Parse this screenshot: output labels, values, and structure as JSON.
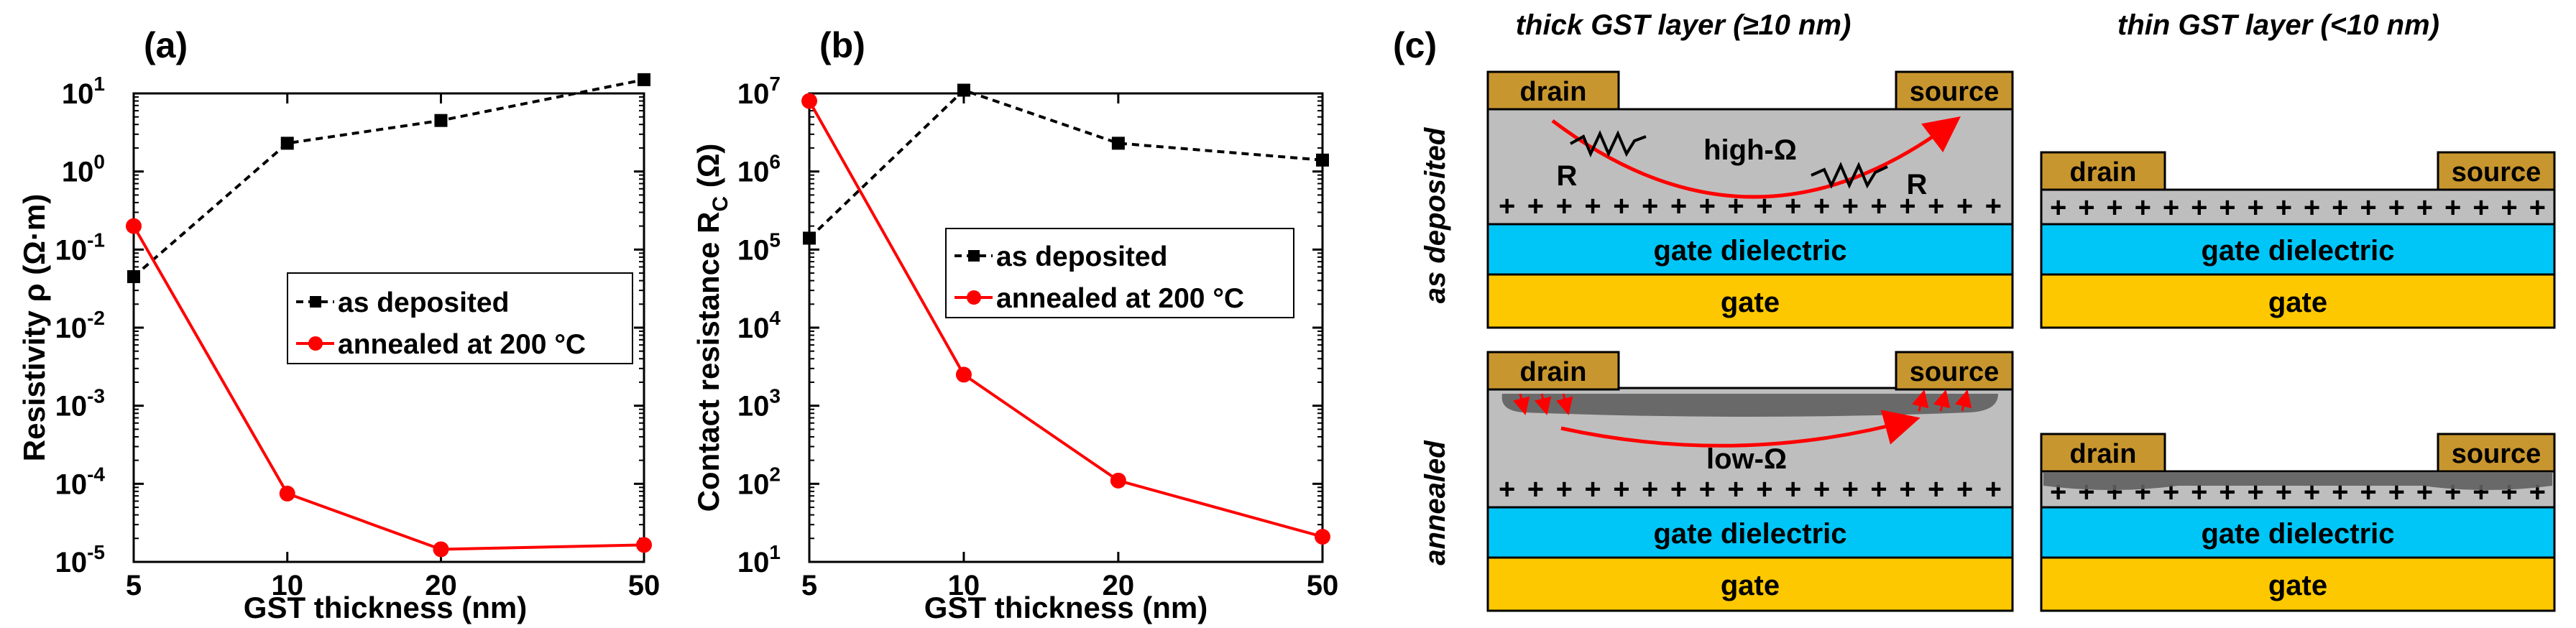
{
  "chart_data": [
    {
      "panel": "(a)",
      "type": "line",
      "x_scale": "log",
      "y_scale": "log",
      "x": [
        5,
        10,
        20,
        50
      ],
      "xticks": [
        "5",
        "10",
        "20",
        "50"
      ],
      "xlim": [
        5,
        50
      ],
      "ylim": [
        1e-05,
        10
      ],
      "yticks": [
        {
          "base": "10",
          "exp": "-5",
          "value": 1e-05
        },
        {
          "base": "10",
          "exp": "-4",
          "value": 0.0001
        },
        {
          "base": "10",
          "exp": "-3",
          "value": 0.001
        },
        {
          "base": "10",
          "exp": "-2",
          "value": 0.01
        },
        {
          "base": "10",
          "exp": "-1",
          "value": 0.1
        },
        {
          "base": "10",
          "exp": "0",
          "value": 1
        },
        {
          "base": "10",
          "exp": "1",
          "value": 10
        }
      ],
      "xlabel": "GST thickness (nm)",
      "ylabel": "Resistivity ρ (Ω·m)",
      "series": [
        {
          "name": "as deposited",
          "color": "#000000",
          "style": "dashed",
          "marker": "square",
          "values": [
            0.045,
            2.3,
            4.5,
            15
          ]
        },
        {
          "name": "annealed at 200 °C",
          "color": "#ff0000",
          "style": "solid",
          "marker": "circle",
          "values": [
            0.2,
            7.5e-05,
            1.45e-05,
            1.65e-05
          ]
        }
      ]
    },
    {
      "panel": "(b)",
      "type": "line",
      "x_scale": "log",
      "y_scale": "log",
      "x": [
        5,
        10,
        20,
        50
      ],
      "xticks": [
        "5",
        "10",
        "20",
        "50"
      ],
      "xlim": [
        5,
        50
      ],
      "ylim": [
        10,
        10000000
      ],
      "yticks": [
        {
          "base": "10",
          "exp": "1",
          "value": 10
        },
        {
          "base": "10",
          "exp": "2",
          "value": 100
        },
        {
          "base": "10",
          "exp": "3",
          "value": 1000
        },
        {
          "base": "10",
          "exp": "4",
          "value": 10000
        },
        {
          "base": "10",
          "exp": "5",
          "value": 100000
        },
        {
          "base": "10",
          "exp": "6",
          "value": 1000000
        },
        {
          "base": "10",
          "exp": "7",
          "value": 10000000
        }
      ],
      "xlabel": "GST thickness (nm)",
      "ylabel_main": "Contact resistance R",
      "ylabel_sub": "C",
      "ylabel_unit": " (Ω)",
      "series": [
        {
          "name": "as deposited",
          "color": "#000000",
          "style": "dashed",
          "marker": "square",
          "values": [
            140000,
            11000000,
            2300000,
            1400000
          ]
        },
        {
          "name": "annealed at 200 °C",
          "color": "#ff0000",
          "style": "solid",
          "marker": "circle",
          "values": [
            8000000,
            2500,
            110,
            21
          ]
        }
      ]
    }
  ],
  "panel_c": {
    "label": "(c)",
    "col_thick": "thick GST layer (≥10 nm)",
    "col_thin": "thin GST layer (<10 nm)",
    "row_asdep": "as deposited",
    "row_annealed": "annealed",
    "drain": "drain",
    "source": "source",
    "gate_dielectric": "gate dielectric",
    "gate": "gate",
    "high_ohm": "high-Ω",
    "low_ohm": "low-Ω",
    "R": "R",
    "plus_row": "+ + + + + + + + + + + + + + + + + +",
    "plus_row_thin": "+ + + + + + + + + + + + + + + + + +",
    "plus_row_thin_annealed": "+ + + + + + + + + + + + + + + + + +",
    "colors": {
      "metal": "#c8962e",
      "gst": "#bebebe",
      "dielectric": "#00c6f8",
      "gate": "#fdc800",
      "crystal": "#5f5f5f",
      "arrow": "#ff0000"
    }
  }
}
